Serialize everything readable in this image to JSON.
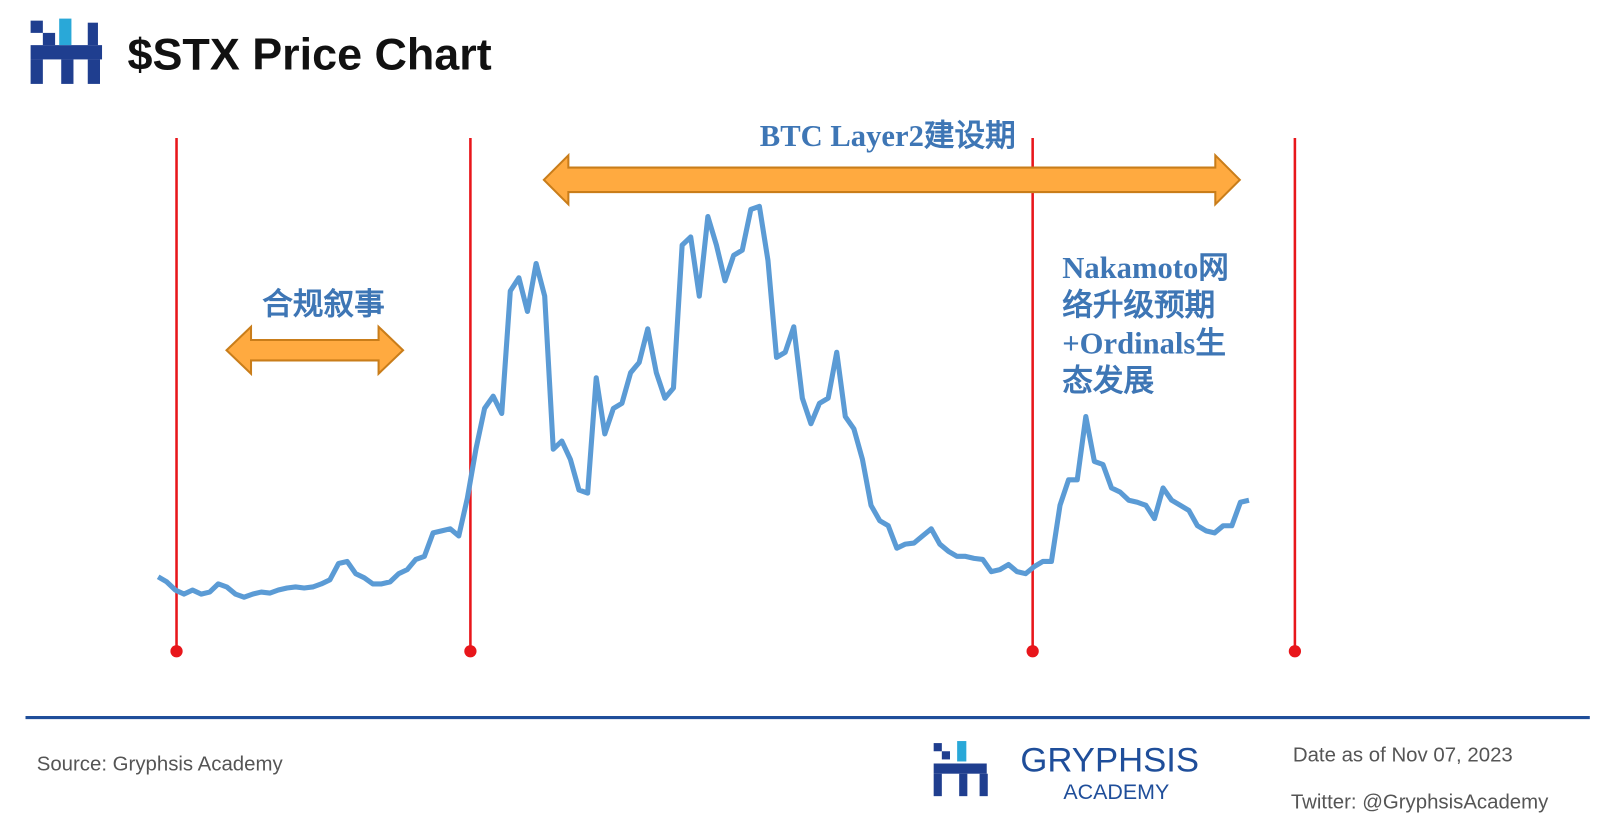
{
  "chart_data": {
    "type": "line",
    "title": "$STX  Price Chart",
    "color": "#5b9bd5",
    "values": [
      85,
      80,
      72,
      68,
      72,
      68,
      70,
      78,
      75,
      68,
      65,
      68,
      70,
      69,
      72,
      74,
      75,
      74,
      75,
      78,
      82,
      98,
      100,
      88,
      84,
      78,
      78,
      80,
      88,
      92,
      102,
      105,
      128,
      130,
      132,
      125,
      162,
      210,
      250,
      262,
      245,
      365,
      378,
      345,
      392,
      360,
      210,
      218,
      200,
      170,
      167,
      280,
      225,
      250,
      255,
      285,
      295,
      328,
      285,
      260,
      270,
      410,
      418,
      360,
      438,
      410,
      375,
      400,
      405,
      445,
      448,
      395,
      300,
      305,
      330,
      260,
      235,
      255,
      260,
      305,
      242,
      230,
      200,
      155,
      140,
      135,
      113,
      117,
      118,
      125,
      132,
      117,
      110,
      105,
      105,
      103,
      102,
      90,
      92,
      97,
      90,
      88,
      95,
      100,
      100,
      155,
      180,
      180,
      242,
      198,
      195,
      172,
      168,
      160,
      158,
      155,
      142,
      172,
      160,
      155,
      150,
      135,
      130,
      128,
      135,
      135,
      158,
      160
    ],
    "annotations": {
      "compliance": "合规叙事",
      "layer2": "BTC Layer2建设期",
      "nakamoto": [
        "Nakamoto网",
        "络升级预期",
        "+Ordinals生",
        "态发展"
      ]
    }
  },
  "footer": {
    "source": "Source: Gryphsis Academy",
    "brand": "GRYPHSIS",
    "brand_sub": "ACADEMY",
    "date": "Date as of Nov 07, 2023",
    "twitter": "Twitter: @GryphsisAcademy"
  }
}
